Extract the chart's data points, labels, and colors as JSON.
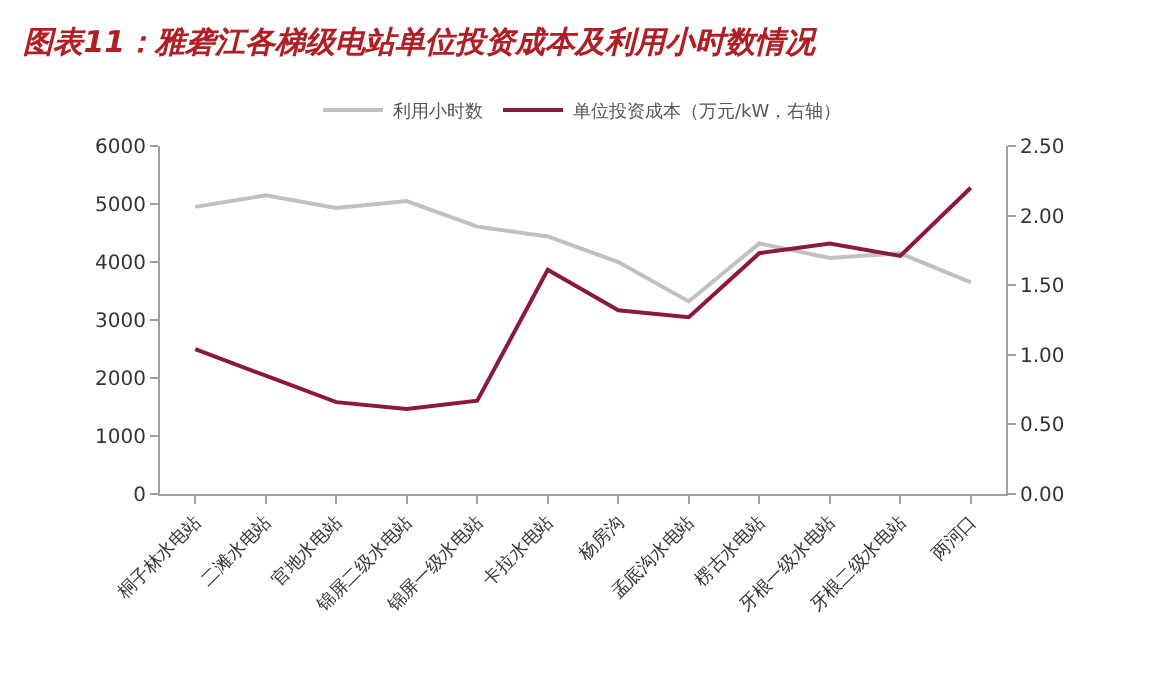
{
  "chart_data": {
    "type": "line",
    "title": "图表11：雅砻江各梯级电站单位投资成本及利用小时数情况",
    "categories": [
      "桐子林水电站",
      "二滩水电站",
      "官地水电站",
      "锦屏二级水电站",
      "锦屏一级水电站",
      "卡拉水电站",
      "杨房沟",
      "孟底沟水电站",
      "楞古水电站",
      "牙根一级水电站",
      "牙根二级水电站",
      "两河口"
    ],
    "series": [
      {
        "name": "利用小时数",
        "color": "#c0c0c0",
        "values": [
          4950,
          5150,
          4930,
          5050,
          4610,
          4440,
          4000,
          3320,
          4320,
          4070,
          4150,
          3650
        ]
      },
      {
        "name": "单位投资成本（万元/kW，右轴）",
        "color": "#8b1a3a",
        "axis": "y2",
        "values": [
          1.04,
          0.85,
          0.66,
          0.61,
          0.67,
          1.61,
          1.32,
          1.27,
          1.73,
          1.8,
          1.71,
          2.2
        ]
      }
    ],
    "ylim": [
      0,
      6000
    ],
    "yticks": [
      0,
      1000,
      2000,
      3000,
      4000,
      5000,
      6000
    ],
    "y2lim": [
      0,
      2.5
    ],
    "y2ticks": [
      {
        "value": 0,
        "label": "0.00"
      },
      {
        "value": 0.5,
        "label": "0.50"
      },
      {
        "value": 1,
        "label": "1.00"
      },
      {
        "value": 1.5,
        "label": "1.50"
      },
      {
        "value": 2,
        "label": "2.00"
      },
      {
        "value": 2.5,
        "label": "2.50"
      }
    ],
    "legend": "top",
    "marker": "none",
    "line_style": "solid"
  }
}
